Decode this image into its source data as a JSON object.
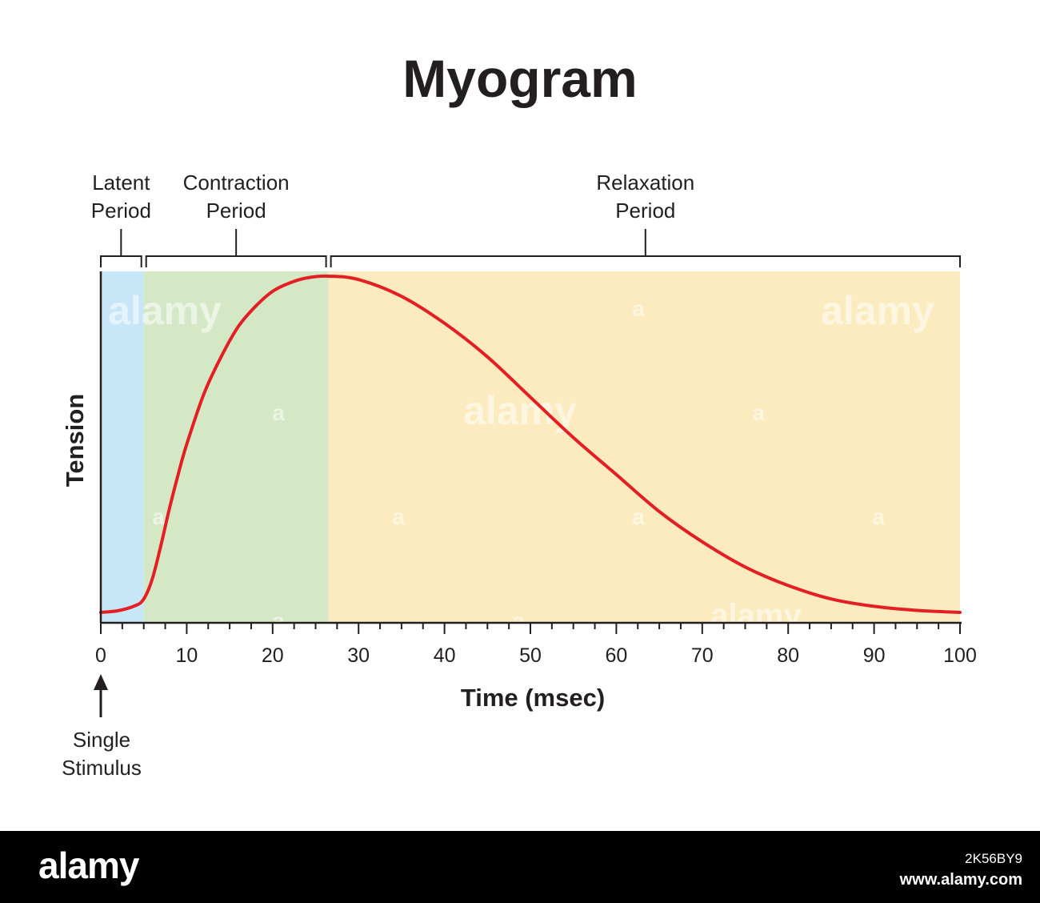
{
  "chart_data": {
    "type": "line",
    "title": "Myogram",
    "xlabel": "Time (msec)",
    "ylabel": "Tension",
    "xlim": [
      0,
      100
    ],
    "x_ticks": [
      0,
      10,
      20,
      30,
      40,
      50,
      60,
      70,
      80,
      90,
      100
    ],
    "x_minor_step": 2.5,
    "grid": false,
    "series": [
      {
        "color": "#e31e24",
        "x": [
          0,
          2,
          4,
          5,
          6,
          7,
          8,
          9,
          10,
          12,
          14,
          16,
          18,
          20,
          22,
          24,
          26.5,
          30,
          35,
          40,
          45,
          50,
          55,
          60,
          65,
          70,
          75,
          80,
          85,
          90,
          95,
          100
        ],
        "y": [
          0.0,
          0.005,
          0.02,
          0.04,
          0.1,
          0.2,
          0.31,
          0.41,
          0.5,
          0.65,
          0.76,
          0.85,
          0.91,
          0.955,
          0.98,
          0.995,
          1.0,
          0.99,
          0.94,
          0.86,
          0.76,
          0.64,
          0.52,
          0.41,
          0.3,
          0.21,
          0.135,
          0.08,
          0.04,
          0.018,
          0.006,
          0.0
        ]
      }
    ],
    "phases": [
      {
        "label_lines": [
          "Latent",
          "Period"
        ],
        "start": 0,
        "end": 5,
        "color": "#c7e6f8"
      },
      {
        "label_lines": [
          "Contraction",
          "Period"
        ],
        "start": 5,
        "end": 26.5,
        "color": "#d4e8c6"
      },
      {
        "label_lines": [
          "Relaxation",
          "Period"
        ],
        "start": 26.5,
        "end": 100,
        "color": "#fcebbe"
      }
    ],
    "annotation": {
      "lines": [
        "Single",
        "Stimulus"
      ],
      "x": 0
    },
    "axis_color": "#231f20"
  },
  "watermark": {
    "text": "alamy",
    "letter": "a",
    "image_id": "2K56BY9",
    "site": "www.alamy.com"
  }
}
